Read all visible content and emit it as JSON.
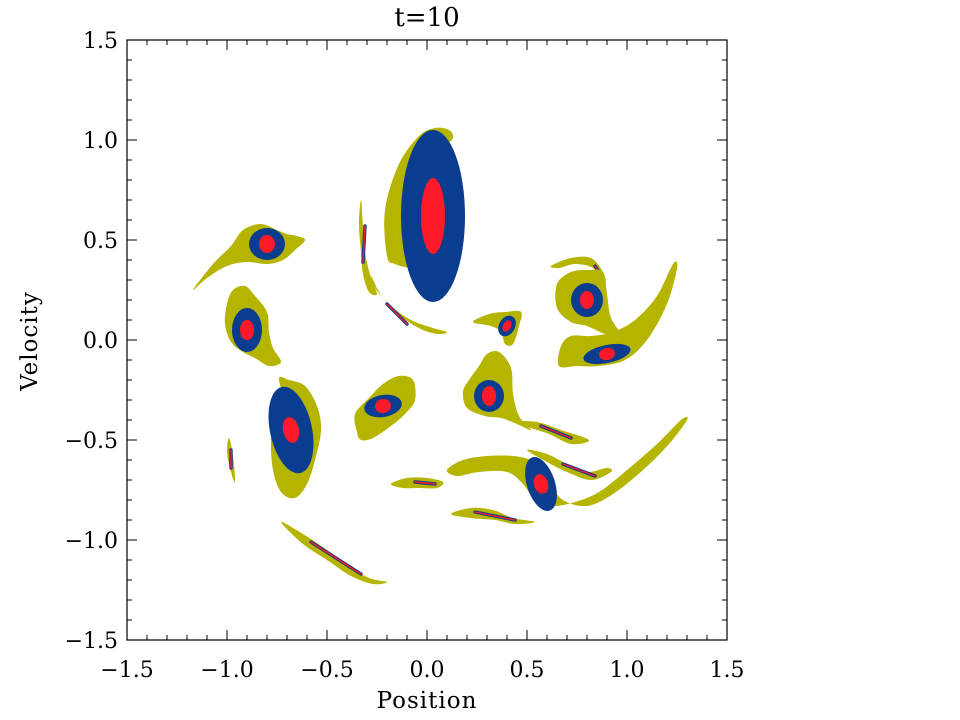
{
  "chart_data": {
    "type": "contour",
    "title": "t=10",
    "xlabel": "Position",
    "ylabel": "Velocity",
    "xlim": [
      -1.5,
      1.5
    ],
    "ylim": [
      -1.5,
      1.5
    ],
    "grid": false,
    "xticks": [
      {
        "value": -1.5,
        "label": "−1.5"
      },
      {
        "value": -1.0,
        "label": "−1.0"
      },
      {
        "value": -0.5,
        "label": "−0.5"
      },
      {
        "value": 0.0,
        "label": "0.0"
      },
      {
        "value": 0.5,
        "label": "0.5"
      },
      {
        "value": 1.0,
        "label": "1.0"
      },
      {
        "value": 1.5,
        "label": "1.5"
      }
    ],
    "yticks": [
      {
        "value": -1.5,
        "label": "−1.5"
      },
      {
        "value": -1.0,
        "label": "−1.0"
      },
      {
        "value": -0.5,
        "label": "−0.5"
      },
      {
        "value": 0.0,
        "label": "0.0"
      },
      {
        "value": 0.5,
        "label": "0.5"
      },
      {
        "value": 1.0,
        "label": "1.0"
      },
      {
        "value": 1.5,
        "label": "1.5"
      }
    ],
    "levels": [
      {
        "name": "outer",
        "color": "#b5b500"
      },
      {
        "name": "middle",
        "color": "#0a3d8f"
      },
      {
        "name": "core",
        "color": "#ff1a2a"
      }
    ],
    "blobs": [
      {
        "x": 0.03,
        "y": 0.62,
        "outer": [
          [
            -0.2,
            0.42
          ],
          [
            -0.21,
            0.65
          ],
          [
            -0.14,
            0.88
          ],
          [
            -0.04,
            1.02
          ],
          [
            0.04,
            1.06
          ],
          [
            0.11,
            1.05
          ],
          [
            0.13,
            1.01
          ],
          [
            0.09,
            0.96
          ],
          [
            0.11,
            0.88
          ],
          [
            0.16,
            0.75
          ],
          [
            0.17,
            0.55
          ],
          [
            0.12,
            0.4
          ],
          [
            0.04,
            0.35
          ],
          [
            -0.08,
            0.36
          ],
          [
            -0.16,
            0.38
          ]
        ],
        "mid": [
          0.16,
          0.43
        ],
        "core": [
          0.06,
          0.19
        ]
      },
      {
        "x": -0.8,
        "y": 0.48,
        "outer": [
          [
            -1.17,
            0.25
          ],
          [
            -1.07,
            0.38
          ],
          [
            -0.98,
            0.47
          ],
          [
            -0.92,
            0.55
          ],
          [
            -0.83,
            0.58
          ],
          [
            -0.75,
            0.55
          ],
          [
            -0.7,
            0.53
          ],
          [
            -0.65,
            0.52
          ],
          [
            -0.61,
            0.5
          ],
          [
            -0.66,
            0.45
          ],
          [
            -0.72,
            0.4
          ],
          [
            -0.8,
            0.38
          ],
          [
            -0.9,
            0.39
          ],
          [
            -1.0,
            0.37
          ],
          [
            -1.1,
            0.31
          ]
        ],
        "mid": [
          0.09,
          0.08
        ],
        "core": [
          0.04,
          0.045
        ]
      },
      {
        "x": -0.9,
        "y": 0.05,
        "outer": [
          [
            -1.0,
            0.18
          ],
          [
            -0.97,
            0.25
          ],
          [
            -0.91,
            0.27
          ],
          [
            -0.86,
            0.22
          ],
          [
            -0.8,
            0.14
          ],
          [
            -0.79,
            0.04
          ],
          [
            -0.77,
            -0.04
          ],
          [
            -0.73,
            -0.11
          ],
          [
            -0.79,
            -0.13
          ],
          [
            -0.86,
            -0.09
          ],
          [
            -0.92,
            -0.06
          ],
          [
            -0.98,
            -0.01
          ],
          [
            -1.01,
            0.08
          ]
        ],
        "mid": [
          0.075,
          0.11
        ],
        "core": [
          0.035,
          0.05
        ]
      },
      {
        "x": -0.68,
        "y": -0.45,
        "outer": [
          [
            -0.69,
            -0.2
          ],
          [
            -0.61,
            -0.23
          ],
          [
            -0.55,
            -0.33
          ],
          [
            -0.53,
            -0.45
          ],
          [
            -0.56,
            -0.6
          ],
          [
            -0.6,
            -0.72
          ],
          [
            -0.66,
            -0.79
          ],
          [
            -0.73,
            -0.76
          ],
          [
            -0.77,
            -0.65
          ],
          [
            -0.78,
            -0.5
          ],
          [
            -0.76,
            -0.38
          ],
          [
            -0.72,
            -0.3
          ],
          [
            -0.74,
            -0.19
          ]
        ],
        "mid": [
          0.105,
          0.22
        ],
        "core": [
          0.04,
          0.065
        ],
        "rotate": -12
      },
      {
        "x": -0.22,
        "y": -0.33,
        "outer": [
          [
            -0.35,
            -0.46
          ],
          [
            -0.36,
            -0.37
          ],
          [
            -0.29,
            -0.29
          ],
          [
            -0.22,
            -0.22
          ],
          [
            -0.14,
            -0.18
          ],
          [
            -0.07,
            -0.2
          ],
          [
            -0.06,
            -0.3
          ],
          [
            -0.11,
            -0.37
          ],
          [
            -0.18,
            -0.43
          ],
          [
            -0.27,
            -0.49
          ],
          [
            -0.33,
            -0.5
          ]
        ],
        "mid": [
          0.095,
          0.055
        ],
        "core": [
          0.04,
          0.035
        ],
        "rotate": -10
      },
      {
        "x": 0.31,
        "y": -0.28,
        "outer": [
          [
            0.3,
            -0.07
          ],
          [
            0.36,
            -0.06
          ],
          [
            0.42,
            -0.14
          ],
          [
            0.43,
            -0.27
          ],
          [
            0.46,
            -0.38
          ],
          [
            0.52,
            -0.45
          ],
          [
            0.45,
            -0.42
          ],
          [
            0.37,
            -0.39
          ],
          [
            0.29,
            -0.38
          ],
          [
            0.2,
            -0.34
          ],
          [
            0.18,
            -0.26
          ],
          [
            0.21,
            -0.2
          ],
          [
            0.26,
            -0.13
          ]
        ],
        "mid": [
          0.075,
          0.08
        ],
        "core": [
          0.035,
          0.05
        ]
      },
      {
        "x": 0.4,
        "y": 0.07,
        "outer": [
          [
            0.23,
            0.09
          ],
          [
            0.31,
            0.13
          ],
          [
            0.39,
            0.14
          ],
          [
            0.47,
            0.14
          ],
          [
            0.46,
            0.07
          ],
          [
            0.43,
            -0.02
          ],
          [
            0.39,
            -0.02
          ],
          [
            0.37,
            0.04
          ],
          [
            0.32,
            0.07
          ]
        ],
        "mid": [
          0.04,
          0.055
        ],
        "core": [
          0.02,
          0.03
        ],
        "rotate": 30
      },
      {
        "x": 0.8,
        "y": 0.2,
        "outer": [
          [
            0.65,
            0.28
          ],
          [
            0.72,
            0.34
          ],
          [
            0.81,
            0.35
          ],
          [
            0.88,
            0.34
          ],
          [
            0.9,
            0.23
          ],
          [
            0.92,
            0.11
          ],
          [
            0.98,
            0.01
          ],
          [
            0.89,
            0.03
          ],
          [
            0.8,
            0.07
          ],
          [
            0.72,
            0.09
          ],
          [
            0.65,
            0.16
          ]
        ],
        "mid": [
          0.08,
          0.085
        ],
        "core": [
          0.035,
          0.045
        ]
      },
      {
        "x": 0.57,
        "y": -0.72,
        "outer": [
          [
            0.1,
            -0.65
          ],
          [
            0.18,
            -0.6
          ],
          [
            0.3,
            -0.58
          ],
          [
            0.43,
            -0.58
          ],
          [
            0.52,
            -0.6
          ],
          [
            0.58,
            -0.64
          ],
          [
            0.62,
            -0.72
          ],
          [
            0.68,
            -0.8
          ],
          [
            0.8,
            -0.83
          ],
          [
            0.93,
            -0.77
          ],
          [
            1.08,
            -0.65
          ],
          [
            1.21,
            -0.52
          ],
          [
            1.3,
            -0.4
          ],
          [
            1.27,
            -0.4
          ],
          [
            1.15,
            -0.52
          ],
          [
            1.0,
            -0.65
          ],
          [
            0.86,
            -0.76
          ],
          [
            0.74,
            -0.81
          ],
          [
            0.63,
            -0.83
          ],
          [
            0.54,
            -0.8
          ],
          [
            0.48,
            -0.72
          ],
          [
            0.4,
            -0.66
          ],
          [
            0.26,
            -0.66
          ],
          [
            0.15,
            -0.68
          ]
        ],
        "mid": [
          0.07,
          0.14
        ],
        "core": [
          0.035,
          0.05
        ],
        "rotate": -18
      },
      {
        "x": 0.9,
        "y": -0.07,
        "outer": [
          [
            0.66,
            -0.13
          ],
          [
            0.67,
            -0.03
          ],
          [
            0.72,
            0.02
          ],
          [
            0.82,
            0.02
          ],
          [
            0.93,
            0.04
          ],
          [
            1.04,
            0.1
          ],
          [
            1.15,
            0.22
          ],
          [
            1.23,
            0.38
          ],
          [
            1.25,
            0.36
          ],
          [
            1.2,
            0.18
          ],
          [
            1.1,
            0.0
          ],
          [
            0.99,
            -0.1
          ],
          [
            0.86,
            -0.13
          ],
          [
            0.75,
            -0.13
          ]
        ],
        "mid": [
          0.12,
          0.045
        ],
        "core": [
          0.04,
          0.03
        ],
        "rotate": -12
      }
    ],
    "filaments": [
      {
        "pts": [
          [
            -0.33,
            0.7
          ],
          [
            -0.34,
            0.58
          ],
          [
            -0.33,
            0.44
          ],
          [
            -0.32,
            0.33
          ],
          [
            -0.29,
            0.24
          ],
          [
            -0.25,
            0.23
          ],
          [
            -0.28,
            0.31
          ],
          [
            -0.31,
            0.44
          ],
          [
            -0.32,
            0.57
          ]
        ],
        "core": [
          [
            -0.31,
            0.57
          ],
          [
            -0.32,
            0.39
          ]
        ]
      },
      {
        "pts": [
          [
            -0.28,
            0.32
          ],
          [
            -0.22,
            0.21
          ],
          [
            -0.12,
            0.11
          ],
          [
            -0.02,
            0.05
          ],
          [
            0.06,
            0.03
          ],
          [
            0.1,
            0.04
          ],
          [
            0.03,
            0.06
          ],
          [
            -0.08,
            0.1
          ],
          [
            -0.18,
            0.17
          ],
          [
            -0.26,
            0.26
          ]
        ],
        "core": [
          [
            -0.2,
            0.18
          ],
          [
            -0.1,
            0.08
          ]
        ]
      },
      {
        "pts": [
          [
            -0.99,
            -0.49
          ],
          [
            -0.97,
            -0.58
          ],
          [
            -0.96,
            -0.71
          ],
          [
            -0.98,
            -0.66
          ],
          [
            -1.0,
            -0.56
          ]
        ],
        "core": [
          [
            -0.98,
            -0.55
          ],
          [
            -0.98,
            -0.64
          ]
        ]
      },
      {
        "pts": [
          [
            -0.73,
            -0.91
          ],
          [
            -0.62,
            -0.97
          ],
          [
            -0.5,
            -1.05
          ],
          [
            -0.39,
            -1.13
          ],
          [
            -0.29,
            -1.19
          ],
          [
            -0.2,
            -1.21
          ],
          [
            -0.27,
            -1.22
          ],
          [
            -0.38,
            -1.18
          ],
          [
            -0.5,
            -1.1
          ],
          [
            -0.62,
            -1.02
          ]
        ],
        "core": [
          [
            -0.58,
            -1.01
          ],
          [
            -0.33,
            -1.17
          ]
        ]
      },
      {
        "pts": [
          [
            -0.18,
            -0.72
          ],
          [
            -0.1,
            -0.69
          ],
          [
            0.0,
            -0.69
          ],
          [
            0.08,
            -0.71
          ],
          [
            0.05,
            -0.74
          ],
          [
            -0.04,
            -0.74
          ],
          [
            -0.12,
            -0.74
          ]
        ],
        "core": [
          [
            -0.06,
            -0.71
          ],
          [
            0.04,
            -0.72
          ]
        ]
      },
      {
        "pts": [
          [
            0.12,
            -0.87
          ],
          [
            0.22,
            -0.84
          ],
          [
            0.33,
            -0.85
          ],
          [
            0.43,
            -0.89
          ],
          [
            0.54,
            -0.91
          ],
          [
            0.44,
            -0.92
          ],
          [
            0.34,
            -0.9
          ],
          [
            0.22,
            -0.89
          ]
        ],
        "core": [
          [
            0.24,
            -0.86
          ],
          [
            0.44,
            -0.9
          ]
        ]
      },
      {
        "pts": [
          [
            0.45,
            -0.41
          ],
          [
            0.55,
            -0.41
          ],
          [
            0.67,
            -0.45
          ],
          [
            0.81,
            -0.5
          ],
          [
            0.72,
            -0.52
          ],
          [
            0.61,
            -0.47
          ],
          [
            0.52,
            -0.44
          ]
        ],
        "core": [
          [
            0.57,
            -0.43
          ],
          [
            0.72,
            -0.49
          ]
        ]
      },
      {
        "pts": [
          [
            0.5,
            -0.55
          ],
          [
            0.6,
            -0.57
          ],
          [
            0.7,
            -0.62
          ],
          [
            0.8,
            -0.66
          ],
          [
            0.9,
            -0.64
          ],
          [
            0.92,
            -0.66
          ],
          [
            0.82,
            -0.7
          ],
          [
            0.7,
            -0.66
          ],
          [
            0.6,
            -0.61
          ]
        ],
        "core": [
          [
            0.68,
            -0.62
          ],
          [
            0.84,
            -0.68
          ]
        ]
      },
      {
        "pts": [
          [
            0.62,
            0.37
          ],
          [
            0.72,
            0.41
          ],
          [
            0.82,
            0.41
          ],
          [
            0.88,
            0.34
          ],
          [
            0.89,
            0.29
          ],
          [
            0.83,
            0.36
          ],
          [
            0.74,
            0.38
          ],
          [
            0.66,
            0.36
          ]
        ],
        "core": [
          [
            0.84,
            0.37
          ],
          [
            0.88,
            0.31
          ]
        ]
      }
    ]
  }
}
